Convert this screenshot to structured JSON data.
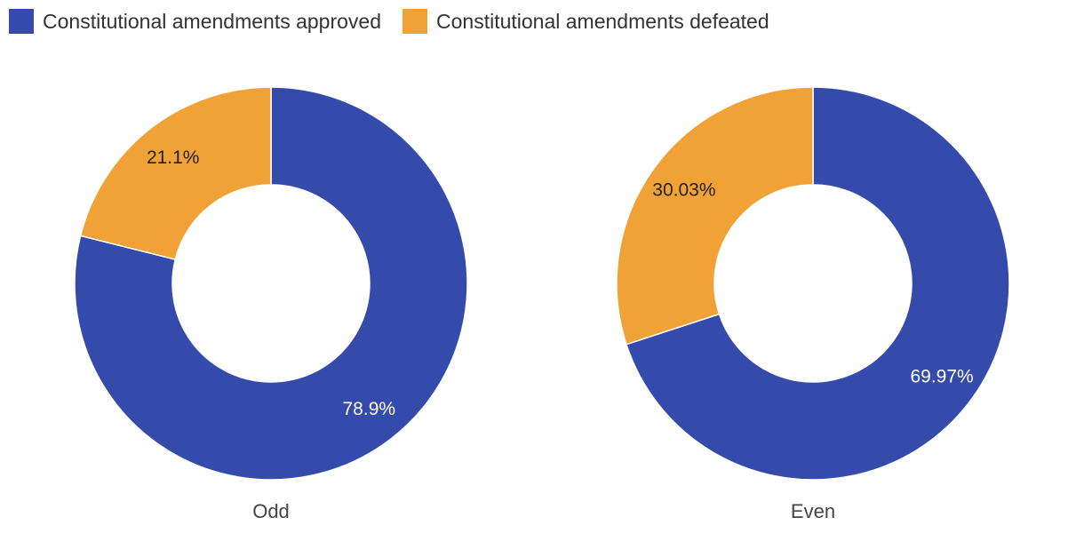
{
  "colors": {
    "approved": "#354bac",
    "defeated": "#f0a236",
    "label_dark": "#222222",
    "label_light": "#ffffff",
    "caption": "#444444"
  },
  "legend": [
    {
      "label": "Constitutional amendments approved",
      "color_key": "approved"
    },
    {
      "label": "Constitutional amendments defeated",
      "color_key": "defeated"
    }
  ],
  "chart_data": [
    {
      "type": "pie",
      "subtype": "donut",
      "title": "Odd",
      "slices": [
        {
          "name": "Constitutional amendments approved",
          "value": 78.9,
          "label": "78.9%",
          "color_key": "approved"
        },
        {
          "name": "Constitutional amendments defeated",
          "value": 21.1,
          "label": "21.1%",
          "color_key": "defeated"
        }
      ]
    },
    {
      "type": "pie",
      "subtype": "donut",
      "title": "Even",
      "slices": [
        {
          "name": "Constitutional amendments approved",
          "value": 69.97,
          "label": "69.97%",
          "color_key": "approved"
        },
        {
          "name": "Constitutional amendments defeated",
          "value": 30.03,
          "label": "30.03%",
          "color_key": "defeated"
        }
      ]
    }
  ]
}
